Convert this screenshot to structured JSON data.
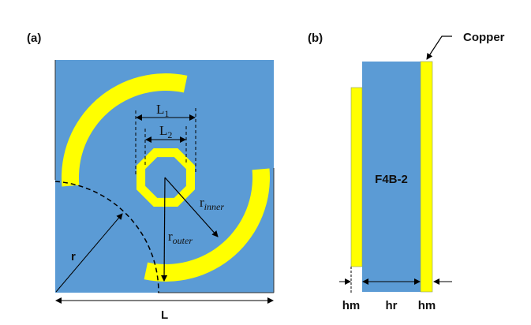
{
  "panel_a": {
    "label": "(a)",
    "dims": {
      "L1": "L",
      "L1_sub": "1",
      "L2": "L",
      "L2_sub": "2",
      "r_inner": "r",
      "r_inner_sub": "inner",
      "r_outer": "r",
      "r_outer_sub": "outer",
      "r": "r",
      "L": "L"
    }
  },
  "panel_b": {
    "label": "(b)",
    "substrate": "F4B-2",
    "copper": "Copper",
    "dims": {
      "hm_left": "hm",
      "hr": "hr",
      "hm_right": "hm"
    }
  },
  "colors": {
    "substrate": "#5b9bd5",
    "copper": "#ffff00"
  }
}
